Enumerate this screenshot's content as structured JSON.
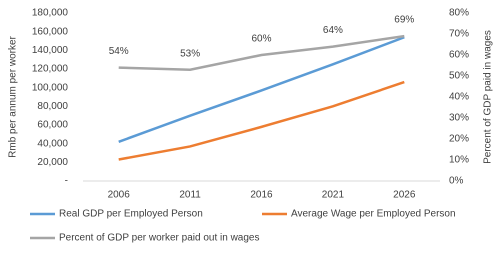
{
  "chart_data": {
    "type": "line",
    "categories": [
      "2006",
      "2011",
      "2016",
      "2021",
      "2026"
    ],
    "y_label": "Rmb per annum per worker",
    "y2_label": "Percent of GDP paid in wages",
    "ylim": [
      0,
      180000
    ],
    "yticks": [
      {
        "value": 0,
        "label": "-"
      },
      {
        "value": 20000,
        "label": "20,000"
      },
      {
        "value": 40000,
        "label": "40,000"
      },
      {
        "value": 60000,
        "label": "60,000"
      },
      {
        "value": 80000,
        "label": "80,000"
      },
      {
        "value": 100000,
        "label": "100,000"
      },
      {
        "value": 120000,
        "label": "120,000"
      },
      {
        "value": 140000,
        "label": "140,000"
      },
      {
        "value": 160000,
        "label": "160,000"
      },
      {
        "value": 180000,
        "label": "180,000"
      }
    ],
    "y2lim": [
      0,
      80
    ],
    "y2ticks": [
      {
        "value": 0,
        "label": "0%"
      },
      {
        "value": 10,
        "label": "10%"
      },
      {
        "value": 20,
        "label": "20%"
      },
      {
        "value": 30,
        "label": "30%"
      },
      {
        "value": 40,
        "label": "40%"
      },
      {
        "value": 50,
        "label": "50%"
      },
      {
        "value": 60,
        "label": "60%"
      },
      {
        "value": 70,
        "label": "70%"
      },
      {
        "value": 80,
        "label": "80%"
      }
    ],
    "grid": false,
    "series": [
      {
        "name": "Real GDP per Employed Person",
        "color": "#5b9bd5",
        "values": [
          42000,
          70000,
          97000,
          125000,
          154000
        ]
      },
      {
        "name": "Average Wage per Employed Person",
        "color": "#ed7d31",
        "values": [
          23000,
          37000,
          58000,
          80000,
          106000
        ]
      },
      {
        "name": "Percent of GDP per worker paid out in wages",
        "color": "#a5a5a5",
        "axis": "y2",
        "values": [
          54,
          53,
          60,
          64,
          69
        ],
        "value_labels": [
          "54%",
          "53%",
          "60%",
          "64%",
          "69%"
        ]
      }
    ]
  }
}
